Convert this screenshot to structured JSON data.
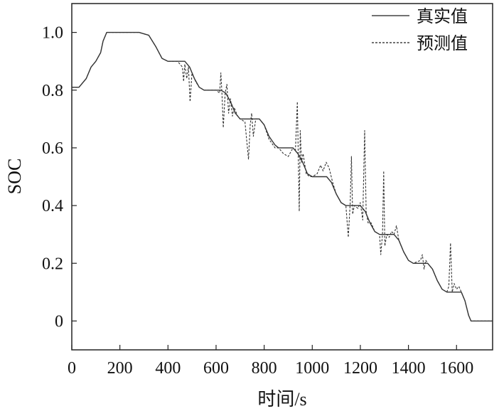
{
  "chart_data": {
    "type": "line",
    "xlabel": "时间/s",
    "ylabel": "SOC",
    "xlim": [
      0,
      1750
    ],
    "ylim": [
      -0.1,
      1.1
    ],
    "x_ticks": [
      0,
      200,
      400,
      600,
      800,
      1000,
      1200,
      1400,
      1600
    ],
    "x_tick_labels": [
      "0",
      "200",
      "400",
      "600",
      "800",
      "1000",
      "1200",
      "1400",
      "1600"
    ],
    "y_ticks": [
      0,
      0.2,
      0.4,
      0.6,
      0.8,
      1.0
    ],
    "y_tick_labels": [
      "0",
      "0.2",
      "0.4",
      "0.6",
      "0.8",
      "1.0"
    ],
    "grid": false,
    "legend_position": "top-right",
    "series": [
      {
        "name": "真实值",
        "style": "solid",
        "color": "#333333",
        "points": [
          [
            0,
            0.81
          ],
          [
            30,
            0.81
          ],
          [
            60,
            0.84
          ],
          [
            80,
            0.88
          ],
          [
            100,
            0.9
          ],
          [
            120,
            0.93
          ],
          [
            130,
            0.97
          ],
          [
            145,
            1.0
          ],
          [
            200,
            1.0
          ],
          [
            280,
            1.0
          ],
          [
            320,
            0.99
          ],
          [
            350,
            0.95
          ],
          [
            375,
            0.91
          ],
          [
            400,
            0.9
          ],
          [
            440,
            0.9
          ],
          [
            470,
            0.9
          ],
          [
            490,
            0.88
          ],
          [
            510,
            0.84
          ],
          [
            530,
            0.81
          ],
          [
            550,
            0.8
          ],
          [
            620,
            0.8
          ],
          [
            640,
            0.79
          ],
          [
            660,
            0.76
          ],
          [
            680,
            0.72
          ],
          [
            700,
            0.7
          ],
          [
            780,
            0.7
          ],
          [
            800,
            0.68
          ],
          [
            820,
            0.64
          ],
          [
            845,
            0.61
          ],
          [
            860,
            0.6
          ],
          [
            920,
            0.6
          ],
          [
            940,
            0.58
          ],
          [
            960,
            0.55
          ],
          [
            980,
            0.51
          ],
          [
            1000,
            0.5
          ],
          [
            1060,
            0.5
          ],
          [
            1080,
            0.48
          ],
          [
            1100,
            0.44
          ],
          [
            1120,
            0.41
          ],
          [
            1140,
            0.4
          ],
          [
            1200,
            0.4
          ],
          [
            1220,
            0.38
          ],
          [
            1240,
            0.34
          ],
          [
            1260,
            0.31
          ],
          [
            1280,
            0.3
          ],
          [
            1340,
            0.3
          ],
          [
            1360,
            0.28
          ],
          [
            1380,
            0.24
          ],
          [
            1400,
            0.21
          ],
          [
            1420,
            0.2
          ],
          [
            1480,
            0.2
          ],
          [
            1500,
            0.18
          ],
          [
            1520,
            0.14
          ],
          [
            1540,
            0.11
          ],
          [
            1560,
            0.1
          ],
          [
            1620,
            0.1
          ],
          [
            1635,
            0.07
          ],
          [
            1650,
            0.02
          ],
          [
            1660,
            0.0
          ],
          [
            1750,
            0.0
          ]
        ]
      },
      {
        "name": "预测值",
        "style": "dashed",
        "color": "#333333",
        "points": [
          [
            0,
            0.81
          ],
          [
            30,
            0.81
          ],
          [
            60,
            0.84
          ],
          [
            80,
            0.88
          ],
          [
            100,
            0.9
          ],
          [
            120,
            0.93
          ],
          [
            130,
            0.97
          ],
          [
            145,
            1.0
          ],
          [
            200,
            1.0
          ],
          [
            280,
            1.0
          ],
          [
            320,
            0.99
          ],
          [
            350,
            0.95
          ],
          [
            375,
            0.91
          ],
          [
            400,
            0.9
          ],
          [
            440,
            0.9
          ],
          [
            460,
            0.88
          ],
          [
            465,
            0.83
          ],
          [
            470,
            0.89
          ],
          [
            478,
            0.84
          ],
          [
            485,
            0.88
          ],
          [
            492,
            0.76
          ],
          [
            500,
            0.86
          ],
          [
            515,
            0.83
          ],
          [
            530,
            0.81
          ],
          [
            550,
            0.8
          ],
          [
            600,
            0.8
          ],
          [
            615,
            0.79
          ],
          [
            620,
            0.86
          ],
          [
            625,
            0.78
          ],
          [
            630,
            0.67
          ],
          [
            638,
            0.79
          ],
          [
            645,
            0.82
          ],
          [
            652,
            0.72
          ],
          [
            660,
            0.77
          ],
          [
            668,
            0.71
          ],
          [
            675,
            0.74
          ],
          [
            690,
            0.71
          ],
          [
            700,
            0.7
          ],
          [
            720,
            0.69
          ],
          [
            728,
            0.62
          ],
          [
            735,
            0.56
          ],
          [
            742,
            0.68
          ],
          [
            748,
            0.72
          ],
          [
            755,
            0.64
          ],
          [
            765,
            0.7
          ],
          [
            780,
            0.7
          ],
          [
            800,
            0.68
          ],
          [
            820,
            0.63
          ],
          [
            845,
            0.6
          ],
          [
            860,
            0.6
          ],
          [
            880,
            0.58
          ],
          [
            900,
            0.57
          ],
          [
            920,
            0.6
          ],
          [
            930,
            0.59
          ],
          [
            938,
            0.76
          ],
          [
            942,
            0.56
          ],
          [
            946,
            0.38
          ],
          [
            950,
            0.66
          ],
          [
            955,
            0.55
          ],
          [
            962,
            0.58
          ],
          [
            975,
            0.51
          ],
          [
            990,
            0.5
          ],
          [
            1000,
            0.5
          ],
          [
            1020,
            0.51
          ],
          [
            1035,
            0.54
          ],
          [
            1045,
            0.52
          ],
          [
            1058,
            0.55
          ],
          [
            1070,
            0.53
          ],
          [
            1085,
            0.48
          ],
          [
            1100,
            0.44
          ],
          [
            1120,
            0.41
          ],
          [
            1140,
            0.4
          ],
          [
            1150,
            0.29
          ],
          [
            1158,
            0.41
          ],
          [
            1163,
            0.57
          ],
          [
            1168,
            0.37
          ],
          [
            1175,
            0.4
          ],
          [
            1190,
            0.39
          ],
          [
            1200,
            0.41
          ],
          [
            1210,
            0.35
          ],
          [
            1218,
            0.66
          ],
          [
            1224,
            0.38
          ],
          [
            1232,
            0.34
          ],
          [
            1245,
            0.34
          ],
          [
            1260,
            0.31
          ],
          [
            1280,
            0.3
          ],
          [
            1285,
            0.23
          ],
          [
            1292,
            0.3
          ],
          [
            1297,
            0.52
          ],
          [
            1302,
            0.26
          ],
          [
            1310,
            0.3
          ],
          [
            1320,
            0.29
          ],
          [
            1330,
            0.31
          ],
          [
            1340,
            0.3
          ],
          [
            1350,
            0.33
          ],
          [
            1360,
            0.28
          ],
          [
            1380,
            0.24
          ],
          [
            1400,
            0.21
          ],
          [
            1420,
            0.2
          ],
          [
            1450,
            0.21
          ],
          [
            1458,
            0.23
          ],
          [
            1465,
            0.18
          ],
          [
            1472,
            0.21
          ],
          [
            1480,
            0.2
          ],
          [
            1500,
            0.18
          ],
          [
            1520,
            0.14
          ],
          [
            1540,
            0.11
          ],
          [
            1560,
            0.1
          ],
          [
            1568,
            0.12
          ],
          [
            1575,
            0.27
          ],
          [
            1582,
            0.1
          ],
          [
            1590,
            0.13
          ],
          [
            1600,
            0.11
          ],
          [
            1610,
            0.12
          ],
          [
            1620,
            0.1
          ],
          [
            1635,
            0.07
          ],
          [
            1650,
            0.02
          ],
          [
            1660,
            0.0
          ],
          [
            1750,
            0.0
          ]
        ]
      }
    ]
  }
}
